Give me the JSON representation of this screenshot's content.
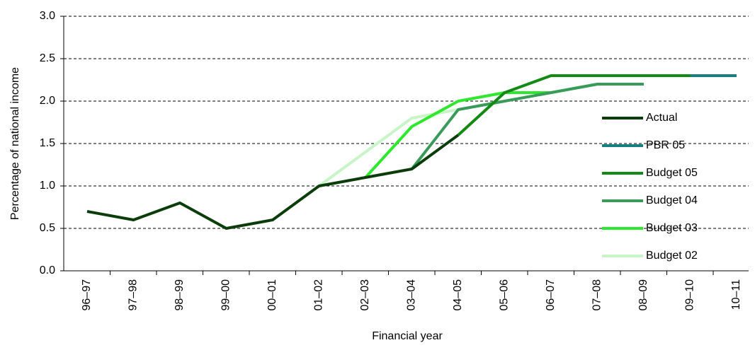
{
  "chart_data": {
    "type": "line",
    "categories": [
      "96–97",
      "97–98",
      "98–99",
      "99–00",
      "00–01",
      "01–02",
      "02–03",
      "03–04",
      "04–05",
      "05–06",
      "06–07",
      "07–08",
      "08–09",
      "09–10",
      "10–11"
    ],
    "series": [
      {
        "name": "Actual",
        "color": "#0b3d0b",
        "values": [
          0.7,
          0.6,
          0.8,
          0.5,
          0.6,
          1.0,
          1.1,
          1.2,
          1.6,
          null,
          null,
          null,
          null,
          null,
          null
        ]
      },
      {
        "name": "PBR 05",
        "color": "#168080",
        "values": [
          null,
          null,
          null,
          null,
          null,
          null,
          null,
          null,
          null,
          null,
          null,
          null,
          null,
          2.3,
          2.3
        ]
      },
      {
        "name": "Budget 05",
        "color": "#138a13",
        "values": [
          null,
          null,
          null,
          null,
          null,
          null,
          null,
          null,
          1.6,
          2.1,
          2.3,
          2.3,
          2.3,
          2.3,
          null
        ]
      },
      {
        "name": "Budget 04",
        "color": "#3a9a5a",
        "values": [
          null,
          null,
          null,
          null,
          null,
          null,
          null,
          1.2,
          1.9,
          2.0,
          2.1,
          2.2,
          2.2,
          null,
          null
        ]
      },
      {
        "name": "Budget 03",
        "color": "#2ee82e",
        "values": [
          null,
          null,
          null,
          null,
          null,
          null,
          1.1,
          1.7,
          2.0,
          2.1,
          2.1,
          2.2,
          null,
          null,
          null
        ]
      },
      {
        "name": "Budget 02",
        "color": "#c8f5c8",
        "values": [
          null,
          null,
          null,
          null,
          null,
          1.0,
          1.4,
          1.8,
          1.9,
          2.0,
          2.1,
          null,
          null,
          null,
          null
        ]
      }
    ],
    "ylim": [
      0,
      3
    ],
    "yticks": [
      {
        "value": 0,
        "label": "0.0"
      },
      0.5,
      {
        "value": 1,
        "label": "1.0"
      },
      1.5,
      {
        "value": 2,
        "label": "2.0"
      },
      2.5,
      {
        "value": 3,
        "label": "3.0"
      }
    ],
    "grid": true,
    "xlabel": "Financial year",
    "ylabel": "Percentage of national income",
    "legend": "right"
  }
}
